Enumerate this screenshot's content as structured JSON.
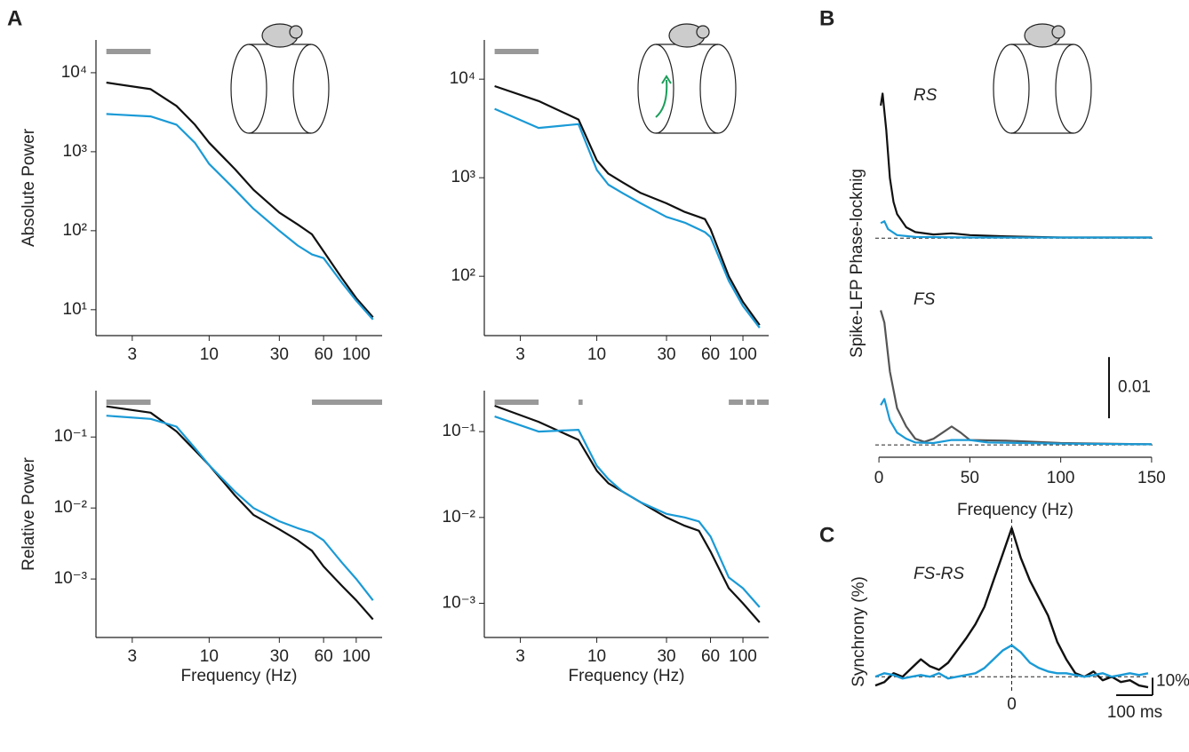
{
  "figure": {
    "panel_labels": [
      "A",
      "B",
      "C"
    ]
  },
  "chart_data": [
    {
      "type": "loglog",
      "ylabel": "Absolute Power",
      "log_x": true,
      "log_y": true,
      "xlim": [
        1.7,
        150
      ],
      "ylim": [
        4.7,
        26000
      ],
      "xticks": [
        3,
        10,
        30,
        60,
        100
      ],
      "yticks": [
        {
          "value": 10,
          "label": "10¹"
        },
        {
          "value": 100,
          "label": "10²"
        },
        {
          "value": 1000,
          "label": "10³"
        },
        {
          "value": 10000,
          "label": "10⁴"
        }
      ],
      "significance": [
        [
          2,
          4
        ]
      ],
      "significance_color": "#999999",
      "x": [
        2,
        4,
        6,
        8,
        10,
        15,
        20,
        30,
        40,
        50,
        60,
        80,
        100,
        130
      ],
      "series": [
        {
          "color": "#111111",
          "values": [
            7500,
            6200,
            3800,
            2200,
            1300,
            600,
            330,
            170,
            120,
            90,
            55,
            25,
            14,
            8
          ]
        },
        {
          "color": "#1a9ad6",
          "values": [
            3000,
            2800,
            2200,
            1300,
            700,
            330,
            190,
            100,
            65,
            50,
            45,
            22,
            13,
            7.5
          ]
        }
      ]
    },
    {
      "type": "loglog",
      "log_x": true,
      "log_y": true,
      "xlim": [
        1.7,
        150
      ],
      "ylim": [
        25,
        25000
      ],
      "xticks": [
        3,
        10,
        30,
        60,
        100
      ],
      "yticks": [
        {
          "value": 100,
          "label": "10²"
        },
        {
          "value": 1000,
          "label": "10³"
        },
        {
          "value": 10000,
          "label": "10⁴"
        }
      ],
      "significance": [
        [
          2,
          4
        ]
      ],
      "significance_color": "#999999",
      "x": [
        2,
        4,
        7.5,
        10,
        12,
        15,
        20,
        30,
        40,
        50,
        55,
        60,
        80,
        100,
        130
      ],
      "series": [
        {
          "color": "#111111",
          "values": [
            8500,
            6000,
            3900,
            1500,
            1100,
            900,
            700,
            550,
            450,
            400,
            380,
            300,
            100,
            55,
            32
          ]
        },
        {
          "color": "#1a9ad6",
          "values": [
            5000,
            3200,
            3500,
            1200,
            850,
            700,
            550,
            400,
            350,
            300,
            280,
            250,
            90,
            50,
            30
          ]
        }
      ]
    },
    {
      "type": "loglog",
      "ylabel": "Relative Power",
      "xlabel": "Frequency (Hz)",
      "log_x": true,
      "log_y": true,
      "xlim": [
        1.7,
        150
      ],
      "ylim": [
        0.00015,
        0.45
      ],
      "xticks": [
        3,
        10,
        30,
        60,
        100
      ],
      "yticks": [
        {
          "value": 0.001,
          "label": "10⁻³"
        },
        {
          "value": 0.01,
          "label": "10⁻²"
        },
        {
          "value": 0.1,
          "label": "10⁻¹"
        }
      ],
      "significance": [
        [
          2,
          4
        ],
        [
          50,
          150
        ]
      ],
      "significance_color": "#999999",
      "x": [
        2,
        4,
        6,
        8,
        10,
        15,
        20,
        30,
        40,
        50,
        60,
        80,
        100,
        130
      ],
      "series": [
        {
          "color": "#111111",
          "values": [
            0.27,
            0.22,
            0.12,
            0.065,
            0.04,
            0.015,
            0.008,
            0.005,
            0.0035,
            0.0025,
            0.0015,
            0.0008,
            0.0005,
            0.00027
          ]
        },
        {
          "color": "#1a9ad6",
          "values": [
            0.2,
            0.18,
            0.14,
            0.07,
            0.04,
            0.017,
            0.01,
            0.0065,
            0.0052,
            0.0045,
            0.0035,
            0.0017,
            0.001,
            0.0005
          ]
        }
      ]
    },
    {
      "type": "loglog",
      "xlabel": "Frequency (Hz)",
      "log_x": true,
      "log_y": true,
      "xlim": [
        1.7,
        150
      ],
      "ylim": [
        0.0004,
        0.3
      ],
      "xticks": [
        3,
        10,
        30,
        60,
        100
      ],
      "yticks": [
        {
          "value": 0.001,
          "label": "10⁻³"
        },
        {
          "value": 0.01,
          "label": "10⁻²"
        },
        {
          "value": 0.1,
          "label": "10⁻¹"
        }
      ],
      "significance": [
        [
          2,
          4
        ],
        [
          7.5,
          8
        ],
        [
          80,
          100
        ],
        [
          105,
          120
        ],
        [
          125,
          150
        ]
      ],
      "significance_color": "#999999",
      "x": [
        2,
        4,
        7.5,
        10,
        12,
        15,
        20,
        30,
        40,
        50,
        60,
        80,
        100,
        130
      ],
      "series": [
        {
          "color": "#111111",
          "values": [
            0.2,
            0.13,
            0.08,
            0.035,
            0.025,
            0.02,
            0.015,
            0.01,
            0.008,
            0.007,
            0.004,
            0.0015,
            0.001,
            0.0006
          ]
        },
        {
          "color": "#1a9ad6",
          "values": [
            0.15,
            0.1,
            0.105,
            0.04,
            0.028,
            0.02,
            0.015,
            0.011,
            0.01,
            0.009,
            0.006,
            0.002,
            0.0015,
            0.0009
          ]
        }
      ]
    },
    {
      "type": "panels",
      "ylabel": "Spike-LFP Phase-locknig",
      "xlabel": "Frequency (Hz)",
      "xlim": [
        -2,
        152
      ],
      "xticks": [
        0,
        50,
        100,
        150
      ],
      "scalebar": 0.01,
      "panels": [
        {
          "label": "RS",
          "ylim": [
            -0.001,
            0.027
          ],
          "series": [
            {
              "color": "#111111",
              "x": [
                1,
                2,
                4,
                6,
                8,
                10,
                15,
                20,
                30,
                40,
                50,
                70,
                100,
                150
              ],
              "values": [
                0.022,
                0.024,
                0.018,
                0.01,
                0.006,
                0.004,
                0.0018,
                0.001,
                0.0006,
                0.0008,
                0.0005,
                0.0003,
                0.0001,
                0.0001
              ]
            },
            {
              "color": "#1a9ad6",
              "x": [
                1,
                3,
                5,
                10,
                20,
                50,
                150
              ],
              "values": [
                0.0025,
                0.0028,
                0.0015,
                0.0005,
                0.0002,
                0.0001,
                0.0001
              ]
            }
          ]
        },
        {
          "label": "FS",
          "ylim": [
            -0.001,
            0.027
          ],
          "series": [
            {
              "color": "#555555",
              "x": [
                1,
                3,
                6,
                10,
                15,
                20,
                25,
                30,
                35,
                40,
                45,
                50,
                70,
                100,
                150
              ],
              "values": [
                0.022,
                0.02,
                0.012,
                0.006,
                0.003,
                0.001,
                0.0005,
                0.001,
                0.002,
                0.003,
                0.002,
                0.0008,
                0.0007,
                0.0003,
                0.0001
              ]
            },
            {
              "color": "#1a9ad6",
              "x": [
                1,
                3,
                6,
                10,
                15,
                20,
                30,
                40,
                50,
                60,
                100,
                150
              ],
              "values": [
                0.0065,
                0.0075,
                0.004,
                0.002,
                0.001,
                0.0004,
                0.0003,
                0.0008,
                0.0008,
                0.0004,
                0.0002,
                0.0001
              ]
            }
          ]
        }
      ]
    },
    {
      "type": "sync",
      "title": "FS-RS",
      "ylabel": "Synchrony (%)",
      "xlim": [
        -375,
        375
      ],
      "ylim": [
        -8,
        90
      ],
      "xticks": [
        0
      ],
      "xscalebar": {
        "value": 100,
        "label": "100 ms"
      },
      "yscalebar": {
        "value": 10,
        "label": "10%"
      },
      "x": [
        -375,
        -350,
        -325,
        -300,
        -275,
        -250,
        -225,
        -200,
        -175,
        -150,
        -125,
        -100,
        -75,
        -50,
        -25,
        0,
        25,
        50,
        75,
        100,
        125,
        150,
        175,
        200,
        225,
        250,
        275,
        300,
        325,
        350,
        375
      ],
      "series": [
        {
          "color": "#111111",
          "values": [
            -5,
            -3,
            2,
            0,
            5,
            10,
            6,
            4,
            8,
            15,
            22,
            30,
            40,
            55,
            70,
            85,
            68,
            55,
            45,
            35,
            20,
            10,
            2,
            0,
            3,
            -2,
            0,
            -3,
            -2,
            -5,
            -6
          ]
        },
        {
          "color": "#1a9ad6",
          "values": [
            0,
            2,
            1,
            -1,
            0,
            1,
            0,
            2,
            -1,
            0,
            1,
            2,
            5,
            10,
            15,
            18,
            14,
            8,
            5,
            3,
            2,
            2,
            1,
            0,
            1,
            2,
            0,
            1,
            2,
            1,
            2
          ]
        }
      ]
    }
  ]
}
